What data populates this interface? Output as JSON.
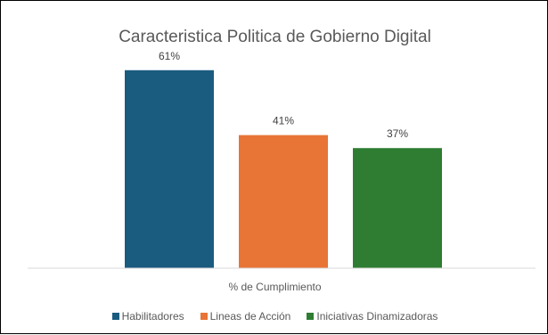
{
  "chart_data": {
    "type": "bar",
    "title": "Caracteristica Politica de Gobierno Digital",
    "xlabel": "% de Cumplimiento",
    "ylabel": "",
    "ylim": [
      0,
      70
    ],
    "grid": false,
    "legend_position": "bottom",
    "categories": [
      "% de Cumplimiento"
    ],
    "series": [
      {
        "name": "Habilitadores",
        "values": [
          61
        ],
        "label": "61%",
        "color": "#1a5b80"
      },
      {
        "name": "Lineas de Acción",
        "values": [
          41
        ],
        "label": "41%",
        "color": "#e87436"
      },
      {
        "name": "Iniciativas Dinamizadoras",
        "values": [
          37
        ],
        "label": "37%",
        "color": "#2e7d32"
      }
    ]
  }
}
